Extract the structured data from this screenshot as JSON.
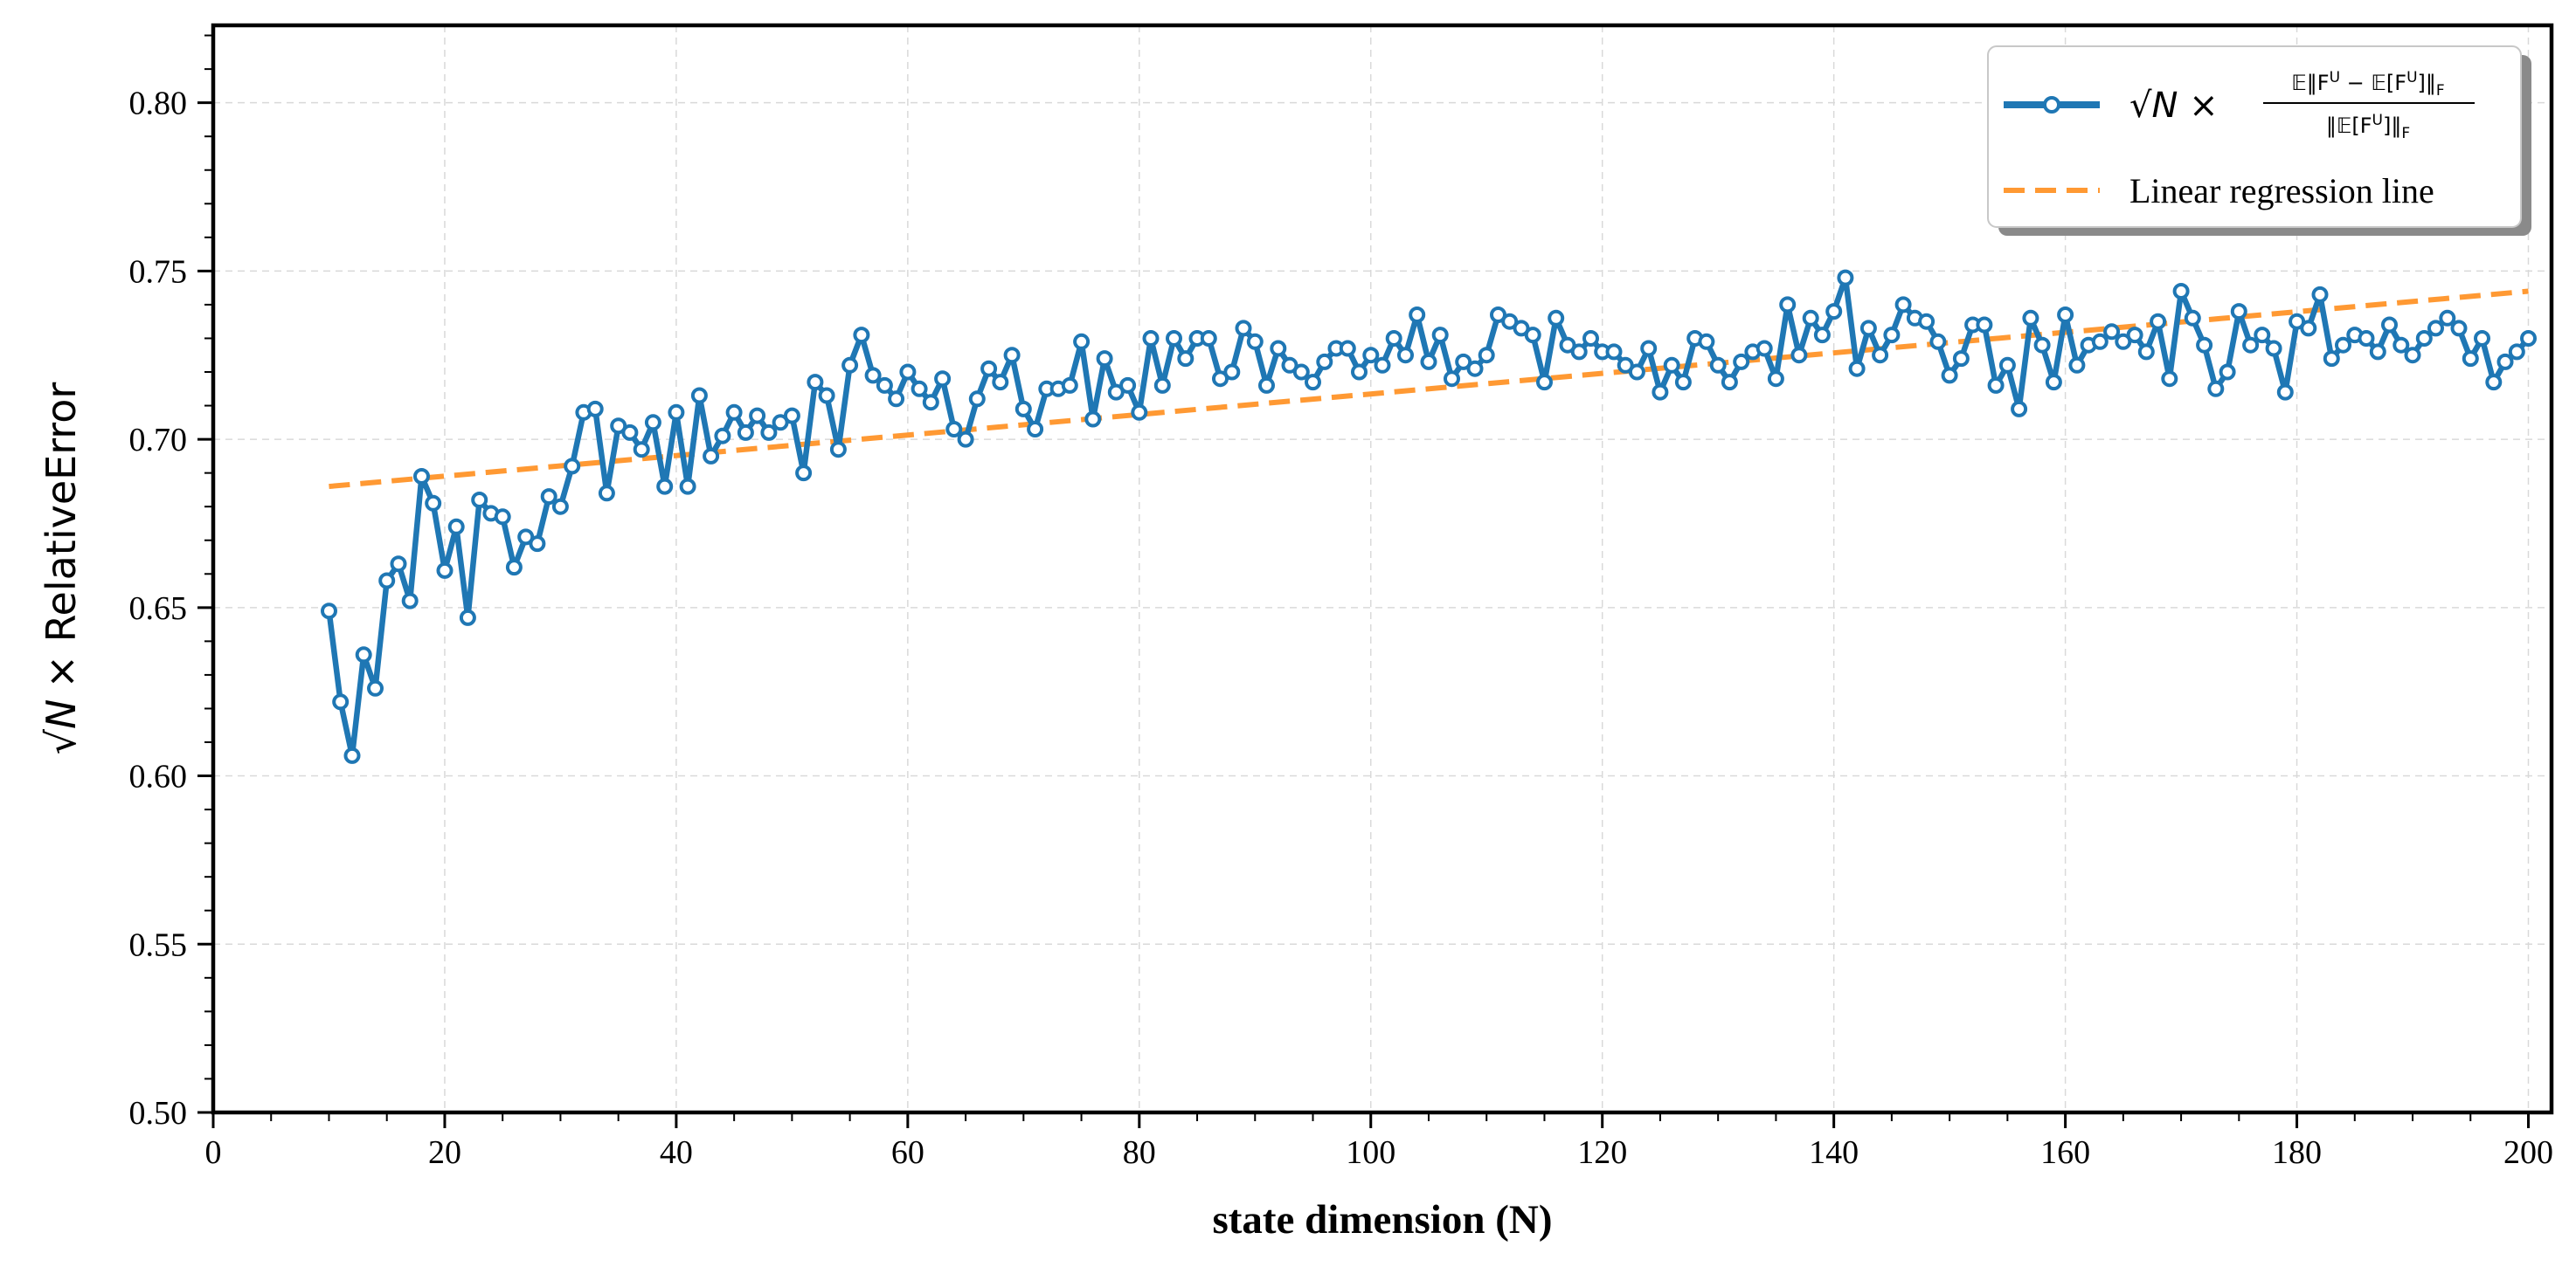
{
  "colors": {
    "series": "#1f77b4",
    "regression": "#ff9933",
    "grid": "#d9d9d9",
    "axis": "#000000"
  },
  "chart_data": {
    "type": "line",
    "title": "",
    "xlabel": "state dimension (N)",
    "ylabel_prefix": "√N",
    "ylabel_suffix": "× RelativeError",
    "xlim": [
      0,
      202
    ],
    "ylim": [
      0.5,
      0.823
    ],
    "xticks": [
      0,
      20,
      40,
      60,
      80,
      100,
      120,
      140,
      160,
      180,
      200
    ],
    "yticks": [
      0.5,
      0.55,
      0.6,
      0.65,
      0.7,
      0.75,
      0.8
    ],
    "xtick_labels": [
      "0",
      "20",
      "40",
      "60",
      "80",
      "100",
      "120",
      "140",
      "160",
      "180",
      "200"
    ],
    "ytick_labels": [
      "0.50",
      "0.55",
      "0.60",
      "0.65",
      "0.70",
      "0.75",
      "0.80"
    ],
    "grid": true,
    "legend_position": "top-right",
    "series": [
      {
        "name": "√N × E‖F^U − E[F^U]‖_F / ‖E[F^U]‖_F",
        "legend_label": {
          "prefix": "√N ×",
          "numerator": "𝔼‖F",
          "numerator_sup": "U",
          "numerator_mid": " − 𝔼[F",
          "numerator_sup2": "U",
          "numerator_end": "]‖",
          "numerator_sub": "F",
          "denominator": "‖𝔼[F",
          "denominator_sup": "U",
          "denominator_end": "]‖",
          "denominator_sub": "F"
        },
        "x_start": 10,
        "x_step": 1,
        "values": [
          0.649,
          0.622,
          0.606,
          0.636,
          0.626,
          0.658,
          0.663,
          0.652,
          0.689,
          0.681,
          0.661,
          0.674,
          0.647,
          0.682,
          0.678,
          0.677,
          0.662,
          0.671,
          0.669,
          0.683,
          0.68,
          0.692,
          0.708,
          0.709,
          0.684,
          0.704,
          0.702,
          0.697,
          0.705,
          0.686,
          0.708,
          0.686,
          0.713,
          0.695,
          0.701,
          0.708,
          0.702,
          0.707,
          0.702,
          0.705,
          0.707,
          0.69,
          0.717,
          0.713,
          0.697,
          0.722,
          0.731,
          0.719,
          0.716,
          0.712,
          0.72,
          0.715,
          0.711,
          0.718,
          0.703,
          0.7,
          0.712,
          0.721,
          0.717,
          0.725,
          0.709,
          0.703,
          0.715,
          0.715,
          0.716,
          0.729,
          0.706,
          0.724,
          0.714,
          0.716,
          0.708,
          0.73,
          0.716,
          0.73,
          0.724,
          0.73,
          0.73,
          0.718,
          0.72,
          0.733,
          0.729,
          0.716,
          0.727,
          0.722,
          0.72,
          0.717,
          0.723,
          0.727,
          0.727,
          0.72,
          0.725,
          0.722,
          0.73,
          0.725,
          0.737,
          0.723,
          0.731,
          0.718,
          0.723,
          0.721,
          0.725,
          0.737,
          0.735,
          0.733,
          0.731,
          0.717,
          0.736,
          0.728,
          0.726,
          0.73,
          0.726,
          0.726,
          0.722,
          0.72,
          0.727,
          0.714,
          0.722,
          0.717,
          0.73,
          0.729,
          0.722,
          0.717,
          0.723,
          0.726,
          0.727,
          0.718,
          0.74,
          0.725,
          0.736,
          0.731,
          0.738,
          0.748,
          0.721,
          0.733,
          0.725,
          0.731,
          0.74,
          0.736,
          0.735,
          0.729,
          0.719,
          0.724,
          0.734,
          0.734,
          0.716,
          0.722,
          0.709,
          0.736,
          0.728,
          0.717,
          0.737,
          0.722,
          0.728,
          0.729,
          0.732,
          0.729,
          0.731,
          0.726,
          0.735,
          0.718,
          0.744,
          0.736,
          0.728,
          0.715,
          0.72,
          0.738,
          0.728,
          0.731,
          0.727,
          0.714,
          0.735,
          0.733,
          0.743,
          0.724,
          0.728,
          0.731,
          0.73,
          0.726,
          0.734,
          0.728,
          0.725,
          0.73,
          0.733,
          0.736,
          0.733,
          0.724,
          0.73,
          0.717,
          0.723,
          0.726,
          0.73
        ]
      },
      {
        "name": "Linear regression line",
        "x": [
          10,
          200
        ],
        "values": [
          0.686,
          0.744
        ]
      }
    ]
  }
}
